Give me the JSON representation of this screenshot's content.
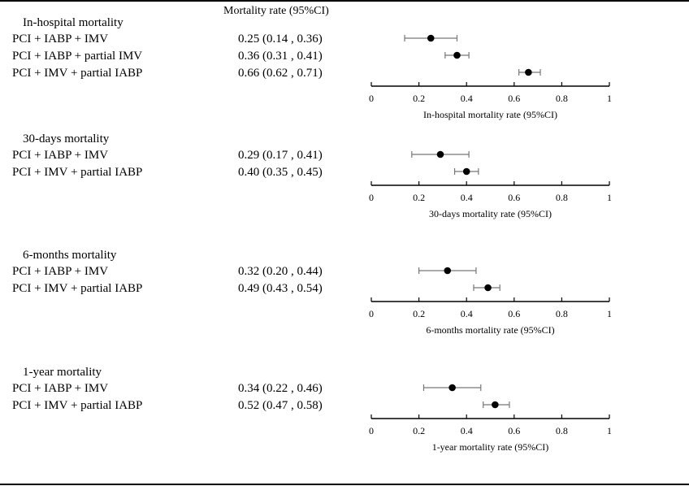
{
  "header": {
    "column_title": "Mortality rate (95%CI)"
  },
  "chart_data": [
    {
      "type": "forest",
      "group_title": "In-hospital mortality",
      "xlabel": "In-hospital mortality rate (95%CI)",
      "xlim": [
        0,
        1
      ],
      "xticks": [
        "0",
        "0.2",
        "0.4",
        "0.6",
        "0.8",
        "1"
      ],
      "rows": [
        {
          "label": "PCI + IABP + IMV",
          "estimate": 0.25,
          "lower": 0.14,
          "upper": 0.36,
          "ci_text": "0.25 (0.14 , 0.36)"
        },
        {
          "label": "PCI + IABP + partial IMV",
          "estimate": 0.36,
          "lower": 0.31,
          "upper": 0.41,
          "ci_text": "0.36 (0.31 , 0.41)"
        },
        {
          "label": "PCI + IMV + partial IABP",
          "estimate": 0.66,
          "lower": 0.62,
          "upper": 0.71,
          "ci_text": "0.66 (0.62 , 0.71)"
        }
      ]
    },
    {
      "type": "forest",
      "group_title": "30-days mortality",
      "xlabel": "30-days mortality rate (95%CI)",
      "xlim": [
        0,
        1
      ],
      "xticks": [
        "0",
        "0.2",
        "0.4",
        "0.6",
        "0.8",
        "1"
      ],
      "rows": [
        {
          "label": "PCI + IABP + IMV",
          "estimate": 0.29,
          "lower": 0.17,
          "upper": 0.41,
          "ci_text": "0.29 (0.17 , 0.41)"
        },
        {
          "label": "PCI + IMV + partial IABP",
          "estimate": 0.4,
          "lower": 0.35,
          "upper": 0.45,
          "ci_text": "0.40 (0.35 , 0.45)"
        }
      ]
    },
    {
      "type": "forest",
      "group_title": "6-months mortality",
      "xlabel": "6-months mortality rate (95%CI)",
      "xlim": [
        0,
        1
      ],
      "xticks": [
        "0",
        "0.2",
        "0.4",
        "0.6",
        "0.8",
        "1"
      ],
      "rows": [
        {
          "label": "PCI + IABP + IMV",
          "estimate": 0.32,
          "lower": 0.2,
          "upper": 0.44,
          "ci_text": "0.32 (0.20 , 0.44)"
        },
        {
          "label": "PCI + IMV + partial IABP",
          "estimate": 0.49,
          "lower": 0.43,
          "upper": 0.54,
          "ci_text": "0.49 (0.43 , 0.54)"
        }
      ]
    },
    {
      "type": "forest",
      "group_title": "1-year mortality",
      "xlabel": "1-year mortality rate (95%CI)",
      "xlim": [
        0,
        1
      ],
      "xticks": [
        "0",
        "0.2",
        "0.4",
        "0.6",
        "0.8",
        "1"
      ],
      "rows": [
        {
          "label": "PCI + IABP + IMV",
          "estimate": 0.34,
          "lower": 0.22,
          "upper": 0.46,
          "ci_text": "0.34 (0.22 , 0.46)"
        },
        {
          "label": "PCI + IMV + partial IABP",
          "estimate": 0.52,
          "lower": 0.47,
          "upper": 0.58,
          "ci_text": "0.52 (0.47 , 0.58)"
        }
      ]
    }
  ]
}
